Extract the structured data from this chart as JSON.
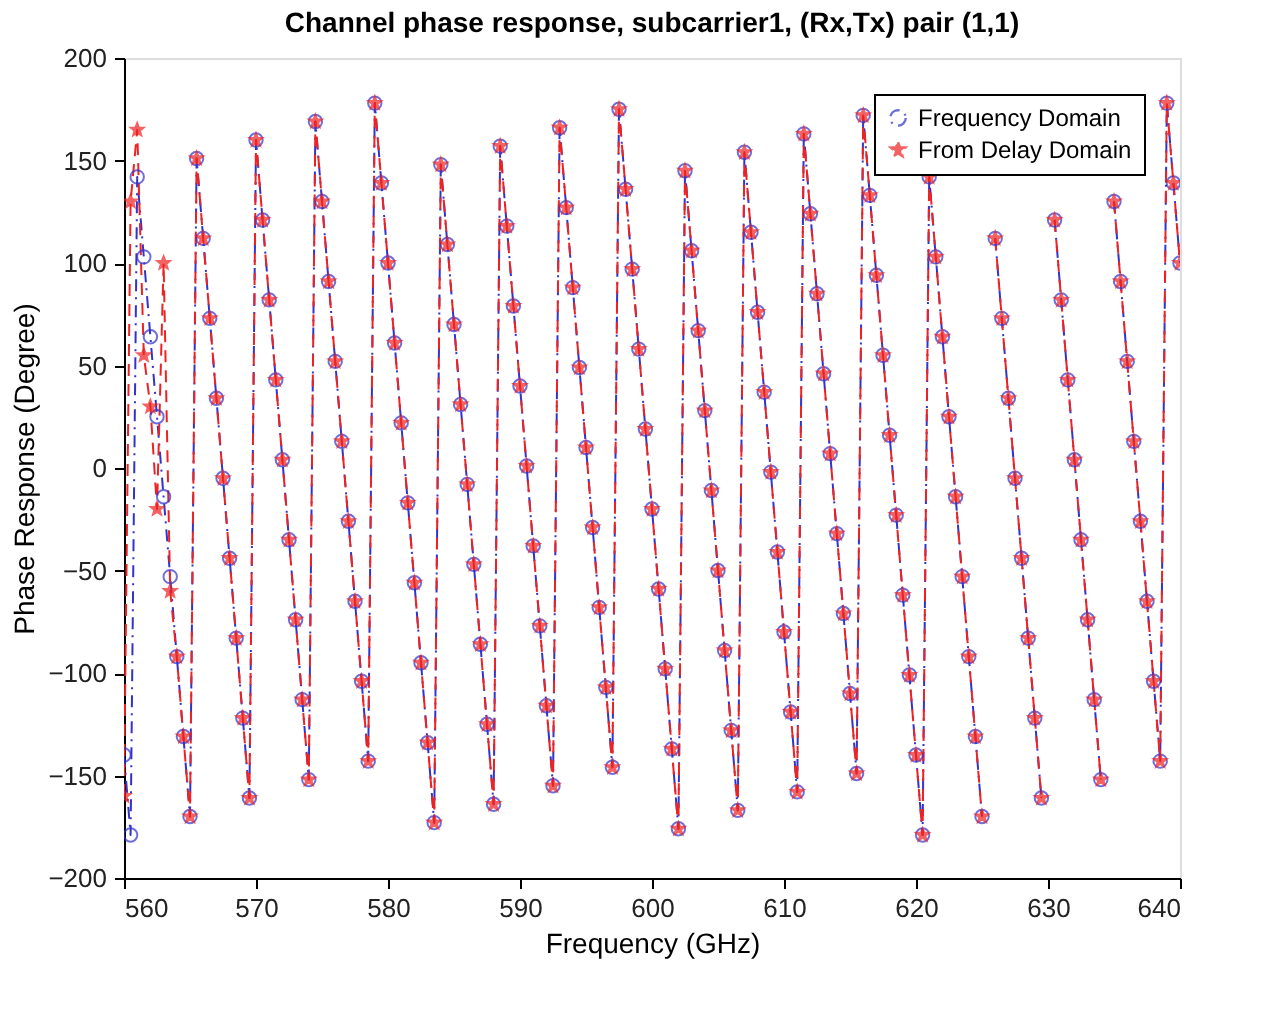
{
  "chart_data": {
    "type": "line",
    "title": "Channel phase response, subcarrier1, (Rx,Tx) pair (1,1)",
    "xlabel": "Frequency (GHz)",
    "ylabel": "Phase Response (Degree)",
    "x": [
      560,
      560.5,
      561,
      561.5,
      562,
      562.5,
      563,
      563.5,
      564,
      564.5,
      565,
      565.5,
      566,
      566.5,
      567,
      567.5,
      568,
      568.5,
      569,
      569.5,
      570,
      570.5,
      571,
      571.5,
      572,
      572.5,
      573,
      573.5,
      574,
      574.5,
      575,
      575.5,
      576,
      576.5,
      577,
      577.5,
      578,
      578.5,
      579,
      579.5,
      580,
      580.5,
      581,
      581.5,
      582,
      582.5,
      583,
      583.5,
      584,
      584.5,
      585,
      585.5,
      586,
      586.5,
      587,
      587.5,
      588,
      588.5,
      589,
      589.5,
      590,
      590.5,
      591,
      591.5,
      592,
      592.5,
      593,
      593.5,
      594,
      594.5,
      595,
      595.5,
      596,
      596.5,
      597,
      597.5,
      598,
      598.5,
      599,
      599.5,
      600,
      600.5,
      601,
      601.5,
      602,
      602.5,
      603,
      603.5,
      604,
      604.5,
      605,
      605.5,
      606,
      606.5,
      607,
      607.5,
      608,
      608.5,
      609,
      609.5,
      610,
      610.5,
      611,
      611.5,
      612,
      612.5,
      613,
      613.5,
      614,
      614.5,
      615,
      615.5,
      616,
      616.5,
      617,
      617.5,
      618,
      618.5,
      619,
      619.5,
      620,
      620.5,
      621,
      621.5,
      622,
      622.5,
      623,
      623.5,
      624,
      624.5,
      625,
      625.5,
      626,
      626.5,
      627,
      627.5,
      628,
      628.5,
      629,
      629.5,
      630,
      630.5,
      631,
      631.5,
      632,
      632.5,
      633,
      633.5,
      634,
      634.5,
      635,
      635.5,
      636,
      636.5,
      637,
      637.5,
      638,
      638.5,
      639,
      639.5,
      640
    ],
    "series": [
      {
        "name": "Frequency Domain",
        "color": "#3333cc",
        "marker": "circle",
        "line_style": "dashdot",
        "values": [
          -140,
          -179,
          142,
          103,
          64,
          25,
          -14,
          -53,
          -92,
          -131,
          -170,
          151,
          112,
          73,
          34,
          -5,
          -44,
          -83,
          -122,
          -161,
          160,
          121,
          82,
          43,
          4,
          -35,
          -74,
          -113,
          -152,
          169,
          130,
          91,
          52,
          13,
          -26,
          -65,
          -104,
          -143,
          178,
          139,
          100,
          61,
          22,
          -17,
          -56,
          -95,
          -134,
          -173,
          148,
          109,
          70,
          31,
          -8,
          -47,
          -86,
          -125,
          -164,
          157,
          118,
          79,
          40,
          1,
          -38,
          -77,
          -116,
          -155,
          166,
          127,
          88,
          49,
          10,
          -29,
          -68,
          -107,
          -146,
          175,
          136,
          97,
          58,
          19,
          -20,
          -59,
          -98,
          -137,
          -176,
          145,
          106,
          67,
          28,
          -11,
          -50,
          -89,
          -128,
          -167,
          154,
          115,
          76,
          37,
          -2,
          -41,
          -80,
          -119,
          -158,
          163,
          124,
          85,
          46,
          7,
          -32,
          -71,
          -110,
          -149,
          172,
          133,
          94,
          55,
          16,
          -23,
          -62,
          -101,
          -140,
          -179,
          142,
          103,
          64,
          25,
          -14,
          -53,
          -92,
          -131,
          -170,
          null,
          112,
          73,
          34,
          -5,
          -44,
          -83,
          -122,
          -161,
          null,
          121,
          82,
          43,
          4,
          -35,
          -74,
          -113,
          -152,
          null,
          130,
          91,
          52,
          13,
          -26,
          -65,
          -104,
          -143,
          178,
          139,
          100
        ]
      },
      {
        "name": "From Delay Domain",
        "color": "#ee2222",
        "marker": "star",
        "line_style": "dashed",
        "values": [
          -160,
          130,
          165,
          55,
          30,
          -20,
          100,
          -60,
          -92,
          -131,
          -170,
          151,
          112,
          73,
          34,
          -5,
          -44,
          -83,
          -122,
          -161,
          160,
          121,
          82,
          43,
          4,
          -35,
          -74,
          -113,
          -152,
          169,
          130,
          91,
          52,
          13,
          -26,
          -65,
          -104,
          -143,
          178,
          139,
          100,
          61,
          22,
          -17,
          -56,
          -95,
          -134,
          -173,
          148,
          109,
          70,
          31,
          -8,
          -47,
          -86,
          -125,
          -164,
          157,
          118,
          79,
          40,
          1,
          -38,
          -77,
          -116,
          -155,
          166,
          127,
          88,
          49,
          10,
          -29,
          -68,
          -107,
          -146,
          175,
          136,
          97,
          58,
          19,
          -20,
          -59,
          -98,
          -137,
          -176,
          145,
          106,
          67,
          28,
          -11,
          -50,
          -89,
          -128,
          -167,
          154,
          115,
          76,
          37,
          -2,
          -41,
          -80,
          -119,
          -158,
          163,
          124,
          85,
          46,
          7,
          -32,
          -71,
          -110,
          -149,
          172,
          133,
          94,
          55,
          16,
          -23,
          -62,
          -101,
          -140,
          -179,
          142,
          103,
          64,
          25,
          -14,
          -53,
          -92,
          -131,
          -170,
          null,
          112,
          73,
          34,
          -5,
          -44,
          -83,
          -122,
          -161,
          null,
          121,
          82,
          43,
          4,
          -35,
          -74,
          -113,
          -152,
          null,
          130,
          91,
          52,
          13,
          -26,
          -65,
          -104,
          -143,
          178,
          139,
          100
        ]
      }
    ],
    "xlim": [
      560,
      640
    ],
    "xticks": [
      560,
      570,
      580,
      590,
      600,
      610,
      620,
      630,
      640
    ],
    "ylim": [
      -200,
      200
    ],
    "yticks": [
      -200,
      -150,
      -100,
      -50,
      0,
      50,
      100,
      150,
      200
    ],
    "grid": false,
    "legend": "top right"
  }
}
